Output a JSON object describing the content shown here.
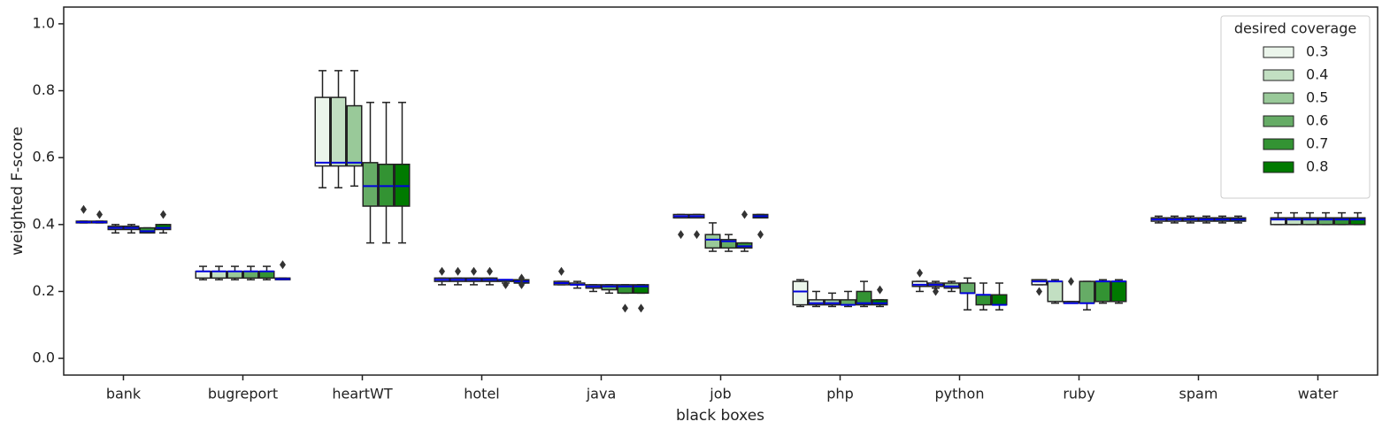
{
  "chart_data": {
    "type": "box",
    "x_label": "black boxes",
    "y_label": "weighted F-score",
    "legend_title": "desired coverage",
    "legend_position": "upper right",
    "median_color": "#0000dd",
    "categories": [
      "bank",
      "bugreport",
      "heartWT",
      "hotel",
      "java",
      "job",
      "php",
      "python",
      "ruby",
      "spam",
      "water"
    ],
    "ylim": [
      -0.05,
      1.05
    ],
    "yticks": [
      {
        "value": 0,
        "label": "0.0"
      },
      0.2,
      0.4,
      0.6,
      0.8,
      {
        "value": 1,
        "label": "1.0"
      }
    ],
    "series": [
      {
        "name": "0.3",
        "color": "#ebf5eb",
        "whislo": [
          0.405,
          0.235,
          0.51,
          0.22,
          0.22,
          0.42,
          0.155,
          0.2,
          0.22,
          0.405,
          0.4
        ],
        "q1": [
          0.405,
          0.24,
          0.575,
          0.23,
          0.22,
          0.42,
          0.16,
          0.215,
          0.22,
          0.41,
          0.4
        ],
        "med": [
          0.407,
          0.26,
          0.585,
          0.235,
          0.225,
          0.425,
          0.2,
          0.22,
          0.23,
          0.415,
          0.415
        ],
        "q3": [
          0.41,
          0.26,
          0.78,
          0.24,
          0.23,
          0.43,
          0.23,
          0.23,
          0.235,
          0.42,
          0.42
        ],
        "whishi": [
          0.41,
          0.275,
          0.86,
          0.24,
          0.23,
          0.43,
          0.235,
          0.23,
          0.235,
          0.425,
          0.435
        ],
        "fliers": [
          [
            0.445
          ],
          [],
          [],
          [
            0.26
          ],
          [
            0.26
          ],
          [
            0.37
          ],
          [],
          [
            0.255
          ],
          [
            0.2
          ],
          [],
          []
        ]
      },
      {
        "name": "0.4",
        "color": "#c2dfc2",
        "whislo": [
          0.405,
          0.235,
          0.51,
          0.22,
          0.21,
          0.42,
          0.155,
          0.21,
          0.165,
          0.405,
          0.4
        ],
        "q1": [
          0.405,
          0.24,
          0.575,
          0.23,
          0.22,
          0.42,
          0.16,
          0.215,
          0.17,
          0.41,
          0.4
        ],
        "med": [
          0.407,
          0.26,
          0.585,
          0.235,
          0.22,
          0.425,
          0.165,
          0.22,
          0.23,
          0.415,
          0.415
        ],
        "q3": [
          0.41,
          0.26,
          0.78,
          0.24,
          0.225,
          0.43,
          0.175,
          0.225,
          0.23,
          0.42,
          0.42
        ],
        "whishi": [
          0.41,
          0.275,
          0.86,
          0.24,
          0.23,
          0.43,
          0.2,
          0.23,
          0.235,
          0.425,
          0.435
        ],
        "fliers": [
          [
            0.43
          ],
          [],
          [],
          [
            0.26
          ],
          [],
          [
            0.37
          ],
          [],
          [
            0.2
          ],
          [],
          [],
          []
        ]
      },
      {
        "name": "0.5",
        "color": "#99c999",
        "whislo": [
          0.375,
          0.235,
          0.515,
          0.22,
          0.2,
          0.32,
          0.155,
          0.2,
          0.165,
          0.405,
          0.4
        ],
        "q1": [
          0.385,
          0.24,
          0.575,
          0.23,
          0.21,
          0.33,
          0.16,
          0.21,
          0.165,
          0.41,
          0.4
        ],
        "med": [
          0.39,
          0.26,
          0.585,
          0.235,
          0.215,
          0.355,
          0.165,
          0.215,
          0.165,
          0.415,
          0.415
        ],
        "q3": [
          0.395,
          0.26,
          0.755,
          0.24,
          0.22,
          0.37,
          0.175,
          0.225,
          0.17,
          0.42,
          0.42
        ],
        "whishi": [
          0.4,
          0.275,
          0.86,
          0.24,
          0.22,
          0.405,
          0.195,
          0.23,
          0.17,
          0.425,
          0.435
        ],
        "fliers": [
          [],
          [],
          [],
          [
            0.26
          ],
          [],
          [],
          [],
          [],
          [
            0.23
          ],
          [],
          []
        ]
      },
      {
        "name": "0.6",
        "color": "#66ac66",
        "whislo": [
          0.375,
          0.235,
          0.345,
          0.22,
          0.195,
          0.32,
          0.155,
          0.145,
          0.145,
          0.405,
          0.4
        ],
        "q1": [
          0.385,
          0.24,
          0.455,
          0.23,
          0.205,
          0.33,
          0.16,
          0.195,
          0.165,
          0.41,
          0.4
        ],
        "med": [
          0.39,
          0.26,
          0.515,
          0.235,
          0.215,
          0.35,
          0.16,
          0.195,
          0.165,
          0.415,
          0.415
        ],
        "q3": [
          0.395,
          0.26,
          0.585,
          0.24,
          0.22,
          0.355,
          0.175,
          0.225,
          0.23,
          0.42,
          0.42
        ],
        "whishi": [
          0.4,
          0.275,
          0.765,
          0.24,
          0.22,
          0.37,
          0.2,
          0.24,
          0.23,
          0.425,
          0.435
        ],
        "fliers": [
          [],
          [],
          [],
          [
            0.26
          ],
          [],
          [],
          [],
          [],
          [],
          [],
          []
        ]
      },
      {
        "name": "0.7",
        "color": "#339333",
        "whislo": [
          0.375,
          0.235,
          0.345,
          0.225,
          0.195,
          0.32,
          0.155,
          0.145,
          0.165,
          0.405,
          0.4
        ],
        "q1": [
          0.375,
          0.24,
          0.455,
          0.23,
          0.195,
          0.33,
          0.16,
          0.16,
          0.17,
          0.41,
          0.4
        ],
        "med": [
          0.38,
          0.26,
          0.515,
          0.235,
          0.215,
          0.335,
          0.165,
          0.19,
          0.23,
          0.415,
          0.415
        ],
        "q3": [
          0.39,
          0.26,
          0.58,
          0.235,
          0.22,
          0.345,
          0.2,
          0.19,
          0.23,
          0.42,
          0.42
        ],
        "whishi": [
          0.39,
          0.275,
          0.765,
          0.235,
          0.22,
          0.345,
          0.23,
          0.225,
          0.235,
          0.425,
          0.435
        ],
        "fliers": [
          [],
          [],
          [],
          [
            0.22
          ],
          [
            0.15
          ],
          [
            0.43
          ],
          [],
          [],
          [],
          [],
          []
        ]
      },
      {
        "name": "0.8",
        "color": "#007a00",
        "whislo": [
          0.375,
          0.235,
          0.345,
          0.225,
          0.195,
          0.42,
          0.155,
          0.145,
          0.165,
          0.405,
          0.4
        ],
        "q1": [
          0.385,
          0.235,
          0.455,
          0.225,
          0.195,
          0.42,
          0.16,
          0.16,
          0.17,
          0.41,
          0.4
        ],
        "med": [
          0.39,
          0.237,
          0.515,
          0.23,
          0.215,
          0.425,
          0.165,
          0.16,
          0.23,
          0.415,
          0.415
        ],
        "q3": [
          0.4,
          0.24,
          0.58,
          0.235,
          0.22,
          0.43,
          0.175,
          0.19,
          0.23,
          0.42,
          0.42
        ],
        "whishi": [
          0.4,
          0.24,
          0.765,
          0.235,
          0.22,
          0.43,
          0.175,
          0.225,
          0.235,
          0.425,
          0.435
        ],
        "fliers": [
          [
            0.43
          ],
          [
            0.28
          ],
          [],
          [
            0.24,
            0.22
          ],
          [
            0.15
          ],
          [
            0.37
          ],
          [
            0.205
          ],
          [],
          [],
          [],
          []
        ]
      }
    ]
  }
}
